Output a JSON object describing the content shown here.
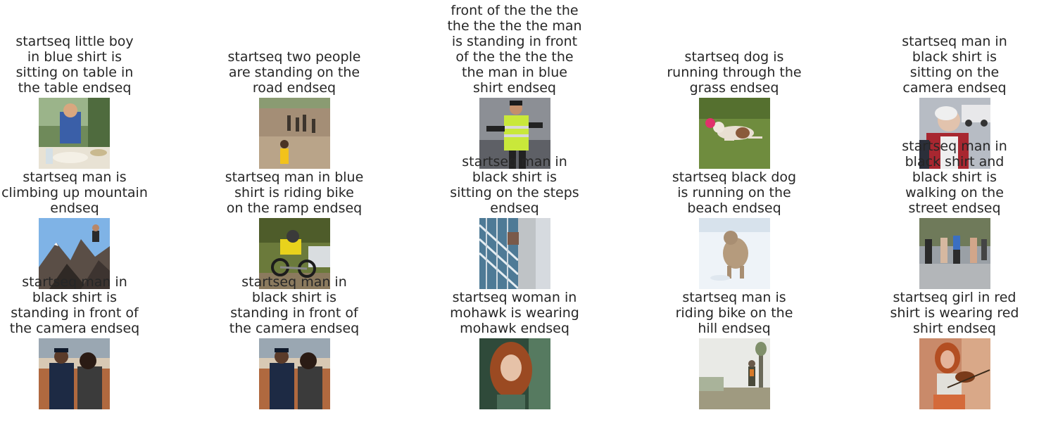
{
  "items": [
    {
      "caption": "startseq little boy\nin blue shirt is\nsitting on table in\nthe table endseq",
      "image": "boy-at-table-photo"
    },
    {
      "caption": "startseq two people\nare standing on the\nroad endseq",
      "image": "children-on-dirt-road-photo"
    },
    {
      "caption": "front of the the the\nthe the the the man\nis standing in front\nof the the the the\nthe man in blue\nshirt endseq",
      "image": "man-in-safety-vest-photo"
    },
    {
      "caption": "startseq dog is\nrunning through the\ngrass endseq",
      "image": "dog-running-on-grass-photo"
    },
    {
      "caption": "startseq man in\nblack shirt is\nsitting on the\ncamera endseq",
      "image": "elderly-man-street-photo"
    },
    {
      "caption": "startseq man is\nclimbing up mountain\nendseq",
      "image": "man-on-mountain-peak-photo"
    },
    {
      "caption": "startseq man in blue\nshirt is riding bike\non the ramp endseq",
      "image": "motocross-rider-photo"
    },
    {
      "caption": "startseq man in\nblack shirt is\nsitting on the steps\nendseq",
      "image": "building-facade-photo"
    },
    {
      "caption": "startseq black dog\nis running on the\nbeach endseq",
      "image": "dog-in-snow-photo"
    },
    {
      "caption": "startseq man in\nblack shirt and\nblack shirt is\nwalking on the\nstreet endseq",
      "image": "people-walking-street-photo"
    },
    {
      "caption": "startseq man in\nblack shirt is\nstanding in front of\nthe camera endseq",
      "image": "police-officer-and-woman-photo"
    },
    {
      "caption": "startseq man in\nblack shirt is\nstanding in front of\nthe camera endseq",
      "image": "police-officer-and-woman-photo"
    },
    {
      "caption": "startseq woman in\nmohawk is wearing\nmohawk endseq",
      "image": "woman-with-red-hair-photo"
    },
    {
      "caption": "startseq man is\nriding bike on the\nhill endseq",
      "image": "hiker-in-fog-photo"
    },
    {
      "caption": "startseq girl in red\nshirt is wearing red\nshirt endseq",
      "image": "girl-playing-violin-photo"
    }
  ]
}
